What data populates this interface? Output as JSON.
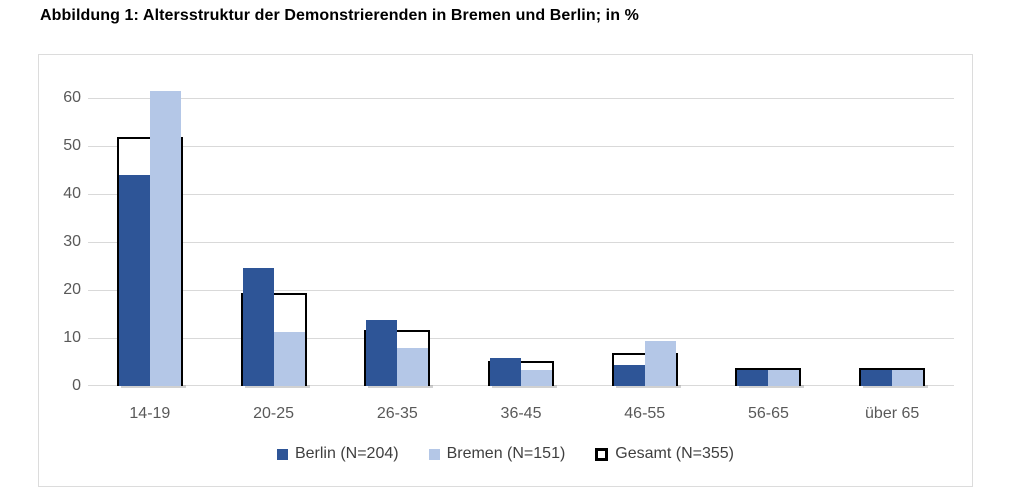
{
  "figure": {
    "title": "Abbildung 1: Altersstruktur der Demonstrierenden in Bremen und Berlin; in %"
  },
  "chart_data": {
    "type": "bar",
    "title": "Abbildung 1: Altersstruktur der Demonstrierenden in Bremen und Berlin; in %",
    "unit": "%",
    "categories": [
      "14-19",
      "20-25",
      "26-35",
      "36-45",
      "46-55",
      "56-65",
      "über 65"
    ],
    "series": [
      {
        "name": "Berlin (N=204)",
        "key": "berlin",
        "style": "filled-bar",
        "color": "#2e5597",
        "values": [
          44,
          24.5,
          13.7,
          5.9,
          4.4,
          3.4,
          3.4
        ]
      },
      {
        "name": "Bremen (N=151)",
        "key": "bremen",
        "style": "filled-bar",
        "color": "#b4c7e7",
        "values": [
          61.5,
          11.3,
          7.9,
          3.3,
          9.3,
          3.3,
          3.3
        ]
      },
      {
        "name": "Gesamt (N=355)",
        "key": "gesamt",
        "style": "outlined-bar",
        "color": "#ffffff",
        "border_color": "#000000",
        "values": [
          51.5,
          19,
          11.3,
          4.8,
          6.5,
          3.4,
          3.4
        ]
      }
    ],
    "yticks": [
      0,
      10,
      20,
      30,
      40,
      50,
      60
    ],
    "ylim": [
      0,
      65
    ],
    "xlabel": "",
    "ylabel": "",
    "grid": true,
    "legend_position": "bottom",
    "colors": {
      "gridline": "#d9d9d9",
      "axis_text": "#595959",
      "legend_text": "#3f3f3f",
      "frame_border": "#dcdcdc",
      "bar_shadow": "#9a9a9a"
    }
  }
}
